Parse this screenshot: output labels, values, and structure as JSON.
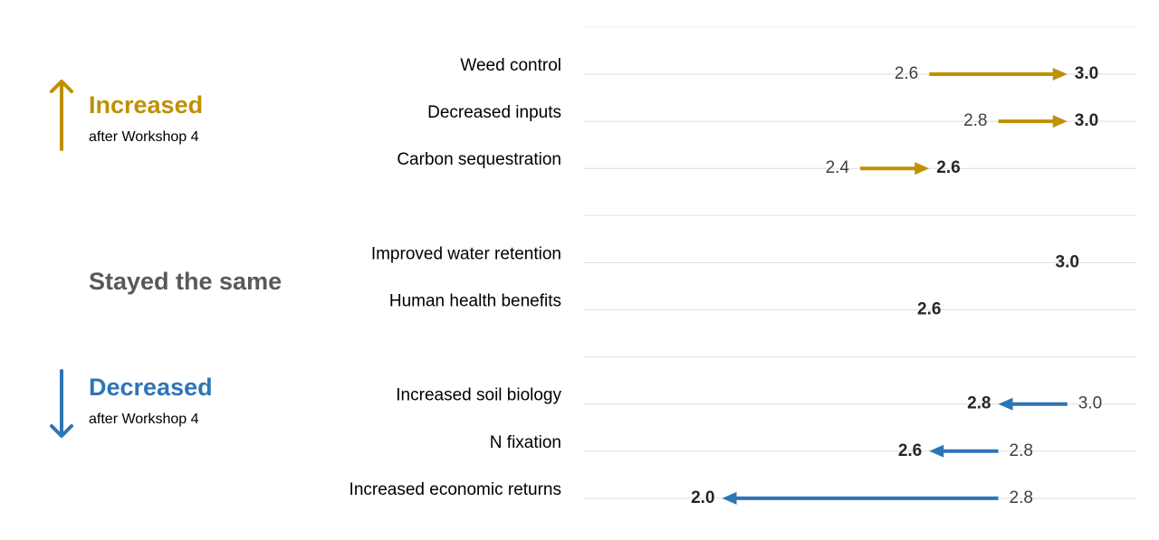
{
  "chart_data": {
    "type": "arrow",
    "xlim": [
      1.6,
      3.2
    ],
    "groups": [
      {
        "name": "Increased",
        "note": "after Workshop 4",
        "color": "#bf9000",
        "categories": [
          "Weed control",
          "Decreased inputs",
          "Carbon sequestration"
        ],
        "before": {
          "values": [
            2.6,
            2.8,
            2.4
          ],
          "value_labels": [
            "2.6",
            "2.8",
            "2.4"
          ]
        },
        "after": {
          "values": [
            3.0,
            3.0,
            2.6
          ],
          "value_labels": [
            "3.0",
            "3.0",
            "2.6"
          ]
        }
      },
      {
        "name": "Stayed the same",
        "color": "#595959",
        "categories": [
          "Improved water retention",
          "Human health benefits"
        ],
        "after": {
          "values": [
            3.0,
            2.6
          ],
          "value_labels": [
            "3.0",
            "2.6"
          ]
        }
      },
      {
        "name": "Decreased",
        "note": "after Workshop 4",
        "color": "#2e75b6",
        "categories": [
          "Increased soil biology",
          "N fixation",
          "Increased economic returns"
        ],
        "before": {
          "values": [
            3.0,
            2.8,
            2.8
          ],
          "value_labels": [
            "3.0",
            "2.8",
            "2.8"
          ]
        },
        "after": {
          "values": [
            2.8,
            2.6,
            2.0
          ],
          "value_labels": [
            "2.8",
            "2.6",
            "2.0"
          ]
        }
      }
    ]
  }
}
